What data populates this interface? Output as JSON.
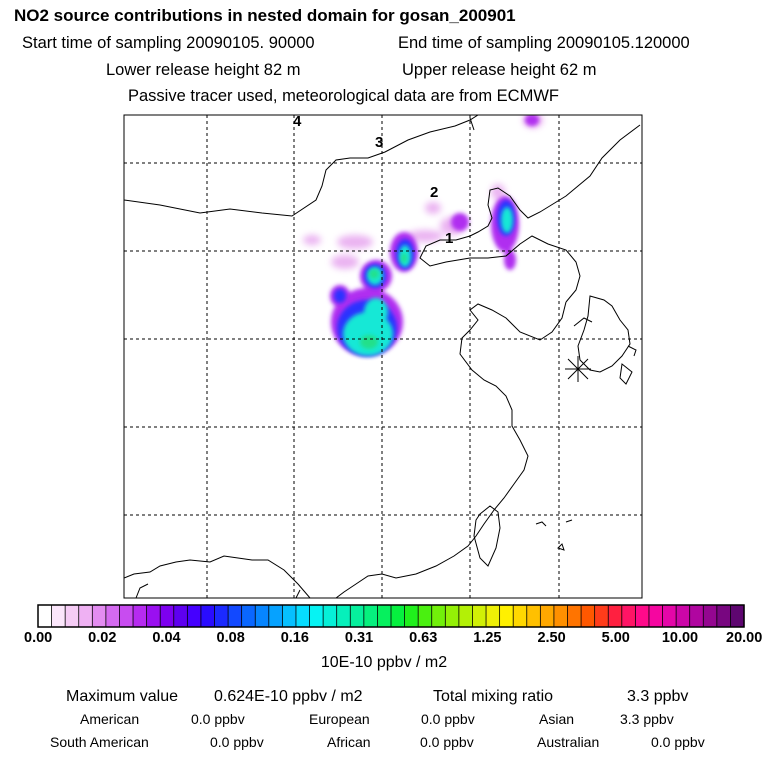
{
  "header": {
    "title": "NO2 source contributions in nested domain for gosan_200901",
    "start_time": "Start time of sampling 20090105. 90000",
    "end_time": "End time of sampling 20090105.120000",
    "lower_release": "Lower release height   82 m",
    "upper_release": "Upper release height   62 m",
    "tracer_note": "Passive tracer used, meteorological data are from ECMWF"
  },
  "map": {
    "trajectory_labels": [
      "1",
      "2",
      "3",
      "4"
    ],
    "receptor_marker": "asterisk-icon"
  },
  "colorbar": {
    "tick_labels": [
      "0.00",
      "0.02",
      "0.04",
      "0.08",
      "0.16",
      "0.31",
      "0.63",
      "1.25",
      "2.50",
      "5.00",
      "10.00",
      "20.00"
    ],
    "unit": "10E-10 ppbv / m2",
    "colors": [
      "#ffffff",
      "#fbe6fb",
      "#f5ccf5",
      "#efb1f3",
      "#e38cf1",
      "#d46af0",
      "#c84cf0",
      "#b62bf0",
      "#9a10f0",
      "#7d00f0",
      "#5e00f0",
      "#4500ff",
      "#2a0cff",
      "#1b2aff",
      "#1249ff",
      "#0a67ff",
      "#0685ff",
      "#06a2ff",
      "#06c0ff",
      "#06ddff",
      "#06f3f3",
      "#06f0d8",
      "#06f0bb",
      "#06f09d",
      "#06f07e",
      "#06f05e",
      "#06f03f",
      "#20f01c",
      "#4af010",
      "#72f00a",
      "#94f006",
      "#b3f006",
      "#d1f006",
      "#eef006",
      "#fff000",
      "#ffd800",
      "#ffc000",
      "#ffa800",
      "#ff9000",
      "#ff7400",
      "#ff5800",
      "#ff3c1a",
      "#ff2040",
      "#ff1465",
      "#ff0a8a",
      "#f506a0",
      "#e406a8",
      "#cc06a8",
      "#b006a0",
      "#940690",
      "#780680",
      "#5e0670"
    ]
  },
  "summary": {
    "max_label": "Maximum value",
    "max_value": "0.624E-10 ppbv / m2",
    "total_label": "Total mixing ratio",
    "total_value": "3.3 ppbv",
    "regions": [
      {
        "name": "American",
        "value": "0.0 ppbv"
      },
      {
        "name": "European",
        "value": "0.0 ppbv"
      },
      {
        "name": "Asian",
        "value": "3.3 ppbv"
      },
      {
        "name": "South American",
        "value": "0.0 ppbv"
      },
      {
        "name": "African",
        "value": "0.0 ppbv"
      },
      {
        "name": "Australian",
        "value": "0.0 ppbv"
      }
    ]
  }
}
